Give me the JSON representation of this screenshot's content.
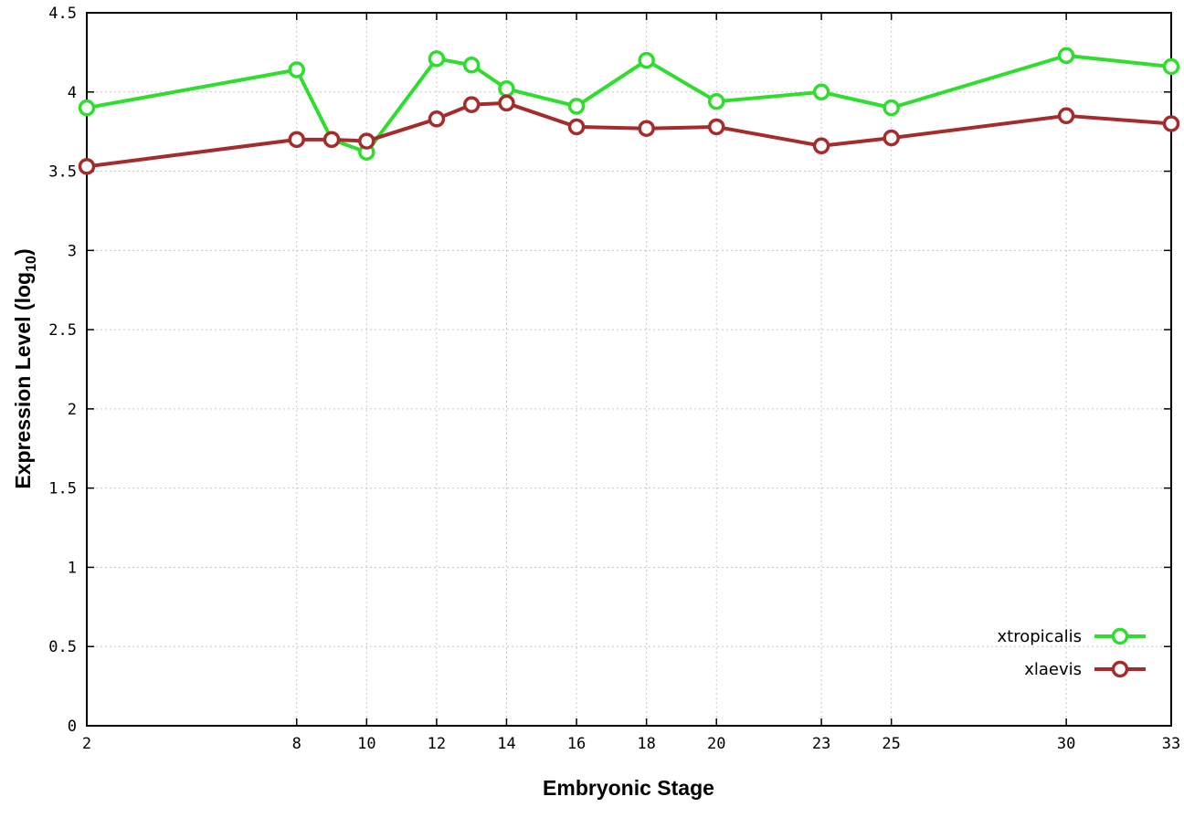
{
  "figure": {
    "background": "#ffffff",
    "border_color": "#000000",
    "grid_color": "#c8c8c8",
    "tick_font_size": 17,
    "point_radius": 7.5,
    "line_width": 4
  },
  "axis_display": {
    "y_main": "Expression Level (log",
    "y_sub": "10",
    "y_close": ")",
    "x": "Embryonic Stage"
  },
  "chart_data": {
    "type": "line",
    "title": "",
    "xlabel": "Embryonic Stage",
    "ylabel": "Expression Level (log10)",
    "xlim": [
      2,
      33
    ],
    "ylim": [
      0,
      4.5
    ],
    "xticks": [
      2,
      8,
      10,
      12,
      14,
      16,
      18,
      20,
      23,
      25,
      30,
      33
    ],
    "yticks": [
      0,
      0.5,
      1,
      1.5,
      2,
      2.5,
      3,
      3.5,
      4,
      4.5
    ],
    "grid": true,
    "legend_position": "bottom-right",
    "x": [
      2,
      8,
      9,
      10,
      12,
      13,
      14,
      16,
      18,
      20,
      23,
      25,
      30,
      33
    ],
    "series": [
      {
        "name": "xtropicalis",
        "color": "#2fdd2f",
        "values": [
          3.9,
          4.14,
          3.7,
          3.62,
          4.21,
          4.17,
          4.02,
          3.91,
          4.2,
          3.94,
          4.0,
          3.9,
          4.23,
          4.16
        ]
      },
      {
        "name": "xlaevis",
        "color": "#a42c2c",
        "values": [
          3.53,
          3.7,
          3.7,
          3.69,
          3.83,
          3.92,
          3.93,
          3.78,
          3.77,
          3.78,
          3.66,
          3.71,
          3.85,
          3.8
        ]
      }
    ]
  }
}
